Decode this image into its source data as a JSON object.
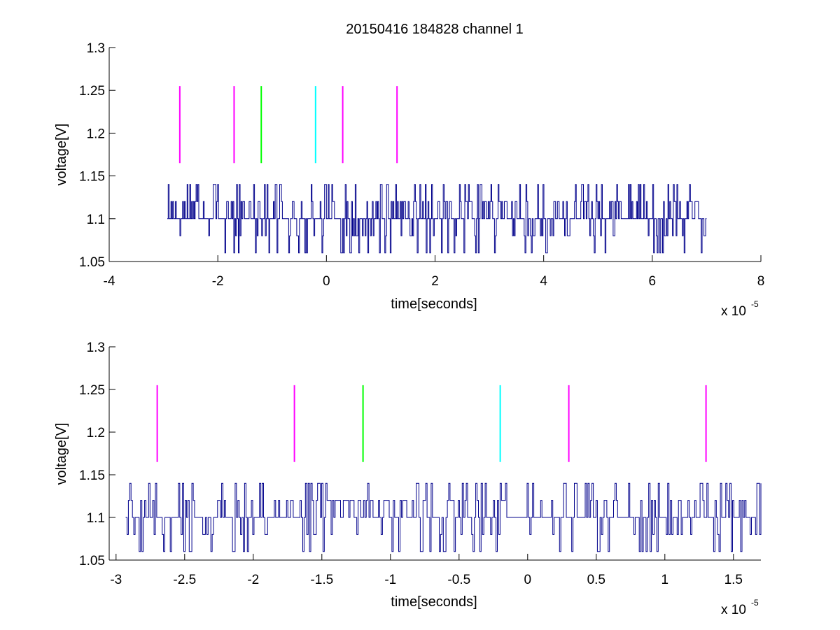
{
  "chart_data": [
    {
      "type": "line",
      "title": "20150416 184828 channel 1",
      "xlabel": "time[seconds]",
      "ylabel": "voltage[V]",
      "x_multiplier_base": "x 10",
      "x_multiplier_exp": "-5",
      "xlim": [
        -4,
        8
      ],
      "ylim": [
        1.05,
        1.3
      ],
      "xticks": [
        -4,
        -2,
        0,
        2,
        4,
        6,
        8
      ],
      "xtick_labels": [
        "-4",
        "-2",
        "0",
        "2",
        "4",
        "6",
        "8"
      ],
      "yticks": [
        1.05,
        1.1,
        1.15,
        1.2,
        1.25,
        1.3
      ],
      "ytick_labels": [
        "1.05",
        "1.1",
        "1.15",
        "1.2",
        "1.25",
        "1.3"
      ],
      "grid": false,
      "series": [
        {
          "color": "#00008b",
          "x_range": [
            -2.93,
            7.0
          ],
          "levels": [
            1.06,
            1.08,
            1.1,
            1.12,
            1.14
          ],
          "base": 1.1,
          "samples": 600,
          "seed": 17
        }
      ],
      "markers": [
        {
          "x": -2.7,
          "y": [
            1.165,
            1.255
          ],
          "color": "#ff00ff"
        },
        {
          "x": -1.7,
          "y": [
            1.165,
            1.255
          ],
          "color": "#ff00ff"
        },
        {
          "x": -1.2,
          "y": [
            1.165,
            1.255
          ],
          "color": "#00ff00"
        },
        {
          "x": -0.2,
          "y": [
            1.165,
            1.255
          ],
          "color": "#00ffff"
        },
        {
          "x": 0.3,
          "y": [
            1.165,
            1.255
          ],
          "color": "#ff00ff"
        },
        {
          "x": 1.3,
          "y": [
            1.165,
            1.255
          ],
          "color": "#ff00ff"
        }
      ]
    },
    {
      "type": "line",
      "title": "",
      "xlabel": "time[seconds]",
      "ylabel": "voltage[V]",
      "x_multiplier_base": "x 10",
      "x_multiplier_exp": "-5",
      "xlim": [
        -3.05,
        1.7
      ],
      "ylim": [
        1.05,
        1.3
      ],
      "xticks": [
        -3,
        -2.5,
        -2,
        -1.5,
        -1,
        -0.5,
        0,
        0.5,
        1,
        1.5
      ],
      "xtick_labels": [
        "-3",
        "-2.5",
        "-2",
        "-1.5",
        "-1",
        "-0.5",
        "0",
        "0.5",
        "1",
        "1.5"
      ],
      "yticks": [
        1.05,
        1.1,
        1.15,
        1.2,
        1.25,
        1.3
      ],
      "ytick_labels": [
        "1.05",
        "1.1",
        "1.15",
        "1.2",
        "1.25",
        "1.3"
      ],
      "grid": false,
      "series": [
        {
          "color": "#00008b",
          "x_range": [
            -2.93,
            1.7
          ],
          "levels": [
            1.06,
            1.08,
            1.1,
            1.12,
            1.14
          ],
          "base": 1.1,
          "samples": 470,
          "seed": 29
        }
      ],
      "markers": [
        {
          "x": -2.7,
          "y": [
            1.165,
            1.255
          ],
          "color": "#ff00ff"
        },
        {
          "x": -1.7,
          "y": [
            1.165,
            1.255
          ],
          "color": "#ff00ff"
        },
        {
          "x": -1.2,
          "y": [
            1.165,
            1.255
          ],
          "color": "#00ff00"
        },
        {
          "x": -0.2,
          "y": [
            1.165,
            1.255
          ],
          "color": "#00ffff"
        },
        {
          "x": 0.3,
          "y": [
            1.165,
            1.255
          ],
          "color": "#ff00ff"
        },
        {
          "x": 1.3,
          "y": [
            1.165,
            1.255
          ],
          "color": "#ff00ff"
        }
      ]
    }
  ]
}
